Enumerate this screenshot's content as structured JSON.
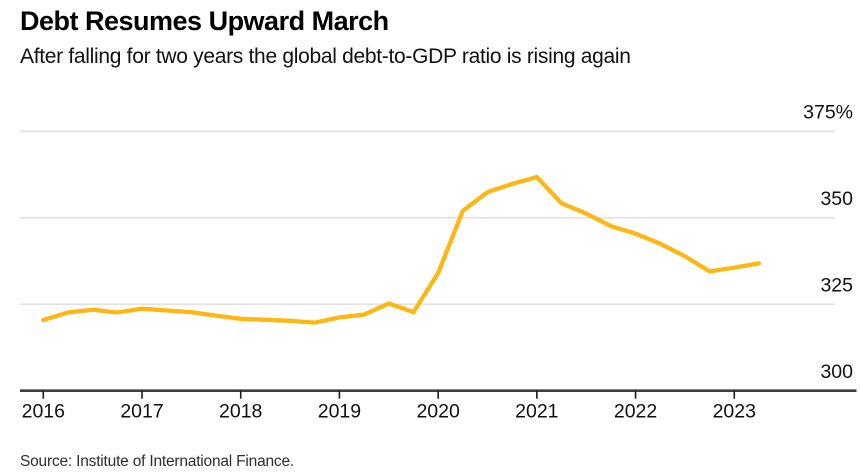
{
  "header": {
    "title": "Debt Resumes Upward March",
    "subtitle": "After falling for two years the global debt-to-GDP ratio is rising again"
  },
  "footer": {
    "source": "Source: Institute of International Finance."
  },
  "chart_data": {
    "type": "line",
    "title": "Debt Resumes Upward March",
    "subtitle": "After falling for two years the global debt-to-GDP ratio is rising again",
    "grid": "horizontal",
    "legend": "none",
    "y_axis": {
      "side": "right",
      "ticks": [
        {
          "value": 300,
          "label": "300"
        },
        {
          "value": 325,
          "label": "325"
        },
        {
          "value": 350,
          "label": "350"
        },
        {
          "value": 375,
          "label": "375%"
        }
      ],
      "ylim": [
        300,
        377
      ]
    },
    "x_axis": {
      "tick_labels": [
        "2016",
        "2017",
        "2018",
        "2019",
        "2020",
        "2021",
        "2022",
        "2023"
      ],
      "tick_years": [
        2016,
        2017,
        2018,
        2019,
        2020,
        2021,
        2022,
        2023
      ],
      "xlim": [
        2016,
        2023.5
      ]
    },
    "series": [
      {
        "name": "Global debt-to-GDP ratio",
        "color": "#fcb714",
        "quarters": [
          "2016 Q1",
          "2016 Q2",
          "2016 Q3",
          "2016 Q4",
          "2017 Q1",
          "2017 Q2",
          "2017 Q3",
          "2017 Q4",
          "2018 Q1",
          "2018 Q2",
          "2018 Q3",
          "2018 Q4",
          "2019 Q1",
          "2019 Q2",
          "2019 Q3",
          "2019 Q4",
          "2020 Q1",
          "2020 Q2",
          "2020 Q3",
          "2020 Q4",
          "2021 Q1",
          "2021 Q2",
          "2021 Q3",
          "2021 Q4",
          "2022 Q1",
          "2022 Q2",
          "2022 Q3",
          "2022 Q4",
          "2023 Q1",
          "2023 Q2"
        ],
        "values": [
          320.4,
          322.6,
          323.4,
          322.6,
          323.7,
          323.2,
          322.7,
          321.7,
          320.8,
          320.5,
          320.2,
          319.7,
          321.2,
          322.0,
          325.2,
          322.7,
          334.0,
          352.0,
          357.4,
          359.8,
          361.8,
          354.2,
          351.2,
          347.6,
          345.4,
          342.5,
          338.9,
          334.5,
          335.6,
          336.8
        ]
      }
    ],
    "colors": {
      "line": "#fcb714",
      "gridline": "#e2e2e2",
      "axis": "#3e3e3e",
      "tick": "#1a1a1a",
      "text": "#111111"
    }
  }
}
